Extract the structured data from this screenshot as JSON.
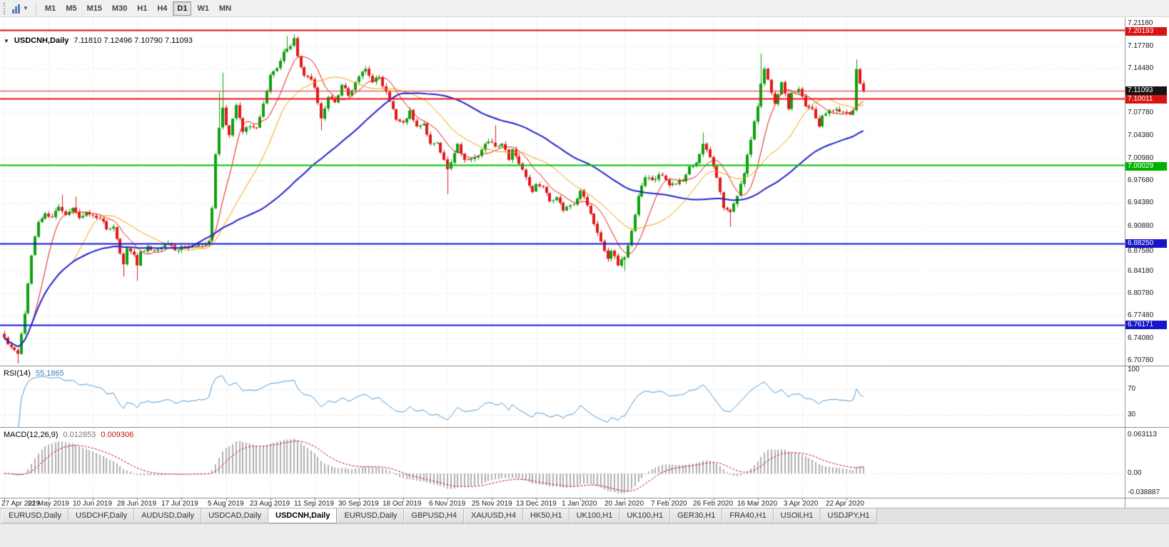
{
  "toolbar": {
    "timeframes": [
      {
        "label": "M1",
        "active": false
      },
      {
        "label": "M5",
        "active": false
      },
      {
        "label": "M15",
        "active": false
      },
      {
        "label": "M30",
        "active": false
      },
      {
        "label": "H1",
        "active": false
      },
      {
        "label": "H4",
        "active": false
      },
      {
        "label": "D1",
        "active": true
      },
      {
        "label": "W1",
        "active": false
      },
      {
        "label": "MN",
        "active": false
      }
    ]
  },
  "chart": {
    "collapse_marker": "▼",
    "title_symbol": "USDCNH,Daily",
    "ohlc": "7.11810 7.12496 7.10790 7.11093"
  },
  "price_axis": {
    "ticks": [
      {
        "text": "7.21180",
        "value": 7.2118
      },
      {
        "text": "7.17780",
        "value": 7.1778
      },
      {
        "text": "7.14480",
        "value": 7.1448
      },
      {
        "text": "",
        "value": 7.1108
      },
      {
        "text": "7.07780",
        "value": 7.0778
      },
      {
        "text": "7.04380",
        "value": 7.0438
      },
      {
        "text": "7.00980",
        "value": 7.0098
      },
      {
        "text": "6.97680",
        "value": 6.9768
      },
      {
        "text": "6.94380",
        "value": 6.9438
      },
      {
        "text": "6.90880",
        "value": 6.9088
      },
      {
        "text": "6.87580",
        "value": 6.8758
      },
      {
        "text": "6.84180",
        "value": 6.8418
      },
      {
        "text": "6.80780",
        "value": 6.8078
      },
      {
        "text": "6.77480",
        "value": 6.7748
      },
      {
        "text": "6.74080",
        "value": 6.7408
      },
      {
        "text": "6.70780",
        "value": 6.7078
      }
    ],
    "highlighted": [
      {
        "text": "7.20193",
        "value": 7.20193,
        "bg": "#d61414"
      },
      {
        "text": "7.11093",
        "value": 7.11093,
        "bg": "#141414"
      },
      {
        "text": "7.10011",
        "value": 7.10011,
        "bg": "#d61414"
      },
      {
        "text": "7.00029",
        "value": 7.00029,
        "bg": "#00b200"
      },
      {
        "text": "6.88250",
        "value": 6.8825,
        "bg": "#1616c8"
      },
      {
        "text": "6.76171",
        "value": 6.76171,
        "bg": "#1616c8"
      }
    ]
  },
  "hlines": [
    {
      "price": 7.20193,
      "color": "#d61414",
      "width": 2
    },
    {
      "price": 7.11093,
      "color": "#e83030",
      "width": 1
    },
    {
      "price": 7.10011,
      "color": "#e81414",
      "width": 2
    },
    {
      "price": 7.00029,
      "color": "#00c400",
      "width": 2
    },
    {
      "price": 6.8825,
      "color": "#1616d2",
      "width": 2
    },
    {
      "price": 6.76171,
      "color": "#1616d2",
      "width": 2
    }
  ],
  "date_axis": {
    "spacing_candles": 13,
    "labels": [
      "27 Apr 2019",
      "22 May 2019",
      "10 Jun 2019",
      "28 Jun 2019",
      "17 Jul 2019",
      "5 Aug 2019",
      "23 Aug 2019",
      "11 Sep 2019",
      "30 Sep 2019",
      "18 Oct 2019",
      "6 Nov 2019",
      "25 Nov 2019",
      "13 Dec 2019",
      "1 Jan 2020",
      "20 Jan 2020",
      "7 Feb 2020",
      "26 Feb 2020",
      "16 Mar 2020",
      "3 Apr 2020",
      "22 Apr 2020"
    ]
  },
  "rsi": {
    "label": "RSI(14)",
    "value": "55.1865",
    "color": "#4f9bd5",
    "levels": [
      70,
      30
    ],
    "axis": [
      {
        "text": "100",
        "value": 100
      },
      {
        "text": "70",
        "value": 70
      },
      {
        "text": "30",
        "value": 30
      }
    ]
  },
  "macd": {
    "label": "MACD(12,26,9)",
    "value_main": "0.012853",
    "value_signal": "0.009306",
    "hist_color": "#b0b0b0",
    "signal_color": "#d01010",
    "axis": [
      {
        "text": "0.063113",
        "value": 0.063113
      },
      {
        "text": "0.00",
        "value": 0
      },
      {
        "text": "-0.038887",
        "value": -0.038887
      }
    ]
  },
  "tabs": {
    "items": [
      {
        "label": "EURUSD,Daily",
        "active": false
      },
      {
        "label": "USDCHF,Daily",
        "active": false
      },
      {
        "label": "AUDUSD,Daily",
        "active": false
      },
      {
        "label": "USDCAD,Daily",
        "active": false
      },
      {
        "label": "USDCNH,Daily",
        "active": true
      },
      {
        "label": "EURUSD,Daily",
        "active": false
      },
      {
        "label": "GBPUSD,H4",
        "active": false
      },
      {
        "label": "XAUUSD,H4",
        "active": false
      },
      {
        "label": "HK50,H1",
        "active": false
      },
      {
        "label": "UK100,H1",
        "active": false
      },
      {
        "label": "UK100,H1",
        "active": false
      },
      {
        "label": "GER30,H1",
        "active": false
      },
      {
        "label": "FRA40,H1",
        "active": false
      },
      {
        "label": "USOil,H1",
        "active": false
      },
      {
        "label": "USDJPY,H1",
        "active": false
      }
    ]
  },
  "colors": {
    "up": "#0fa00f",
    "down": "#e11919",
    "grid": "#d9d9d9",
    "level": "#c8c8c8",
    "axis_text": "#1a1a1a"
  },
  "chart_data": {
    "type": "candlestick",
    "symbol": "USDCNH",
    "period": "Daily",
    "open": 7.1181,
    "high": 7.12496,
    "low": 7.1079,
    "close": 7.11093,
    "visible_range": {
      "start": "27 Apr 2019",
      "end": "22 Apr 2020"
    },
    "price_range": {
      "max": 7.2118,
      "min": 6.7078
    },
    "candles_total": 253,
    "price_anchors": [
      [
        0,
        6.742
      ],
      [
        2,
        6.728
      ],
      [
        4,
        6.718
      ],
      [
        5,
        6.748
      ],
      [
        6,
        6.778
      ],
      [
        8,
        6.865
      ],
      [
        10,
        6.915
      ],
      [
        12,
        6.928
      ],
      [
        14,
        6.922
      ],
      [
        16,
        6.938
      ],
      [
        18,
        6.926
      ],
      [
        20,
        6.936
      ],
      [
        22,
        6.921
      ],
      [
        24,
        6.93
      ],
      [
        26,
        6.925
      ],
      [
        28,
        6.921
      ],
      [
        30,
        6.904
      ],
      [
        32,
        6.908
      ],
      [
        34,
        6.868
      ],
      [
        35,
        6.852
      ],
      [
        36,
        6.876
      ],
      [
        38,
        6.866
      ],
      [
        39,
        6.85
      ],
      [
        40,
        6.871
      ],
      [
        42,
        6.879
      ],
      [
        44,
        6.873
      ],
      [
        46,
        6.877
      ],
      [
        48,
        6.883
      ],
      [
        50,
        6.873
      ],
      [
        52,
        6.879
      ],
      [
        54,
        6.877
      ],
      [
        56,
        6.879
      ],
      [
        58,
        6.881
      ],
      [
        60,
        6.887
      ],
      [
        61,
        6.936
      ],
      [
        62,
        7.016
      ],
      [
        63,
        7.056
      ],
      [
        64,
        7.086
      ],
      [
        65,
        7.06
      ],
      [
        66,
        7.045
      ],
      [
        68,
        7.09
      ],
      [
        70,
        7.05
      ],
      [
        72,
        7.058
      ],
      [
        74,
        7.056
      ],
      [
        76,
        7.092
      ],
      [
        78,
        7.135
      ],
      [
        80,
        7.145
      ],
      [
        82,
        7.17
      ],
      [
        84,
        7.178
      ],
      [
        85,
        7.19
      ],
      [
        86,
        7.163
      ],
      [
        88,
        7.134
      ],
      [
        90,
        7.128
      ],
      [
        91,
        7.116
      ],
      [
        92,
        7.093
      ],
      [
        93,
        7.07
      ],
      [
        95,
        7.102
      ],
      [
        97,
        7.094
      ],
      [
        99,
        7.12
      ],
      [
        101,
        7.104
      ],
      [
        103,
        7.124
      ],
      [
        105,
        7.14
      ],
      [
        106,
        7.144
      ],
      [
        108,
        7.124
      ],
      [
        110,
        7.132
      ],
      [
        112,
        7.11
      ],
      [
        114,
        7.084
      ],
      [
        115,
        7.068
      ],
      [
        117,
        7.064
      ],
      [
        119,
        7.082
      ],
      [
        121,
        7.058
      ],
      [
        123,
        7.062
      ],
      [
        125,
        7.032
      ],
      [
        127,
        7.034
      ],
      [
        129,
        7.008
      ],
      [
        130,
        6.994
      ],
      [
        132,
        7.018
      ],
      [
        133,
        7.032
      ],
      [
        135,
        7.008
      ],
      [
        137,
        7.01
      ],
      [
        139,
        7.014
      ],
      [
        141,
        7.032
      ],
      [
        143,
        7.034
      ],
      [
        144,
        7.028
      ],
      [
        146,
        7.032
      ],
      [
        148,
        7.008
      ],
      [
        149,
        7.024
      ],
      [
        151,
        7.002
      ],
      [
        153,
        6.982
      ],
      [
        155,
        6.96
      ],
      [
        156,
        6.972
      ],
      [
        158,
        6.968
      ],
      [
        160,
        6.946
      ],
      [
        162,
        6.952
      ],
      [
        164,
        6.932
      ],
      [
        166,
        6.94
      ],
      [
        168,
        6.95
      ],
      [
        169,
        6.962
      ],
      [
        171,
        6.94
      ],
      [
        173,
        6.912
      ],
      [
        175,
        6.886
      ],
      [
        177,
        6.86
      ],
      [
        178,
        6.872
      ],
      [
        180,
        6.85
      ],
      [
        182,
        6.862
      ],
      [
        184,
        6.902
      ],
      [
        186,
        6.954
      ],
      [
        188,
        6.982
      ],
      [
        190,
        6.978
      ],
      [
        192,
        6.986
      ],
      [
        194,
        6.978
      ],
      [
        195,
        6.97
      ],
      [
        197,
        6.972
      ],
      [
        199,
        6.976
      ],
      [
        201,
        6.998
      ],
      [
        203,
        7.004
      ],
      [
        205,
        7.032
      ],
      [
        207,
        7.012
      ],
      [
        208,
        6.998
      ],
      [
        210,
        6.96
      ],
      [
        211,
        6.936
      ],
      [
        213,
        6.93
      ],
      [
        215,
        6.954
      ],
      [
        217,
        6.988
      ],
      [
        219,
        7.038
      ],
      [
        221,
        7.088
      ],
      [
        222,
        7.122
      ],
      [
        223,
        7.144
      ],
      [
        224,
        7.128
      ],
      [
        226,
        7.092
      ],
      [
        228,
        7.124
      ],
      [
        230,
        7.084
      ],
      [
        231,
        7.108
      ],
      [
        233,
        7.114
      ],
      [
        235,
        7.088
      ],
      [
        237,
        7.084
      ],
      [
        239,
        7.058
      ],
      [
        240,
        7.074
      ],
      [
        242,
        7.082
      ],
      [
        244,
        7.084
      ],
      [
        246,
        7.08
      ],
      [
        248,
        7.076
      ],
      [
        249,
        7.082
      ],
      [
        250,
        7.144
      ],
      [
        251,
        7.122
      ],
      [
        252,
        7.11093
      ]
    ],
    "wick_events": [
      {
        "i": 4,
        "low": 6.7035
      },
      {
        "i": 17,
        "high": 6.956
      },
      {
        "i": 21,
        "high": 6.953
      },
      {
        "i": 35,
        "low": 6.8335
      },
      {
        "i": 39,
        "low": 6.827
      },
      {
        "i": 63,
        "high": 7.109
      },
      {
        "i": 64,
        "high": 7.1385
      },
      {
        "i": 83,
        "high": 7.193
      },
      {
        "i": 85,
        "high": 7.196
      },
      {
        "i": 93,
        "low": 7.052
      },
      {
        "i": 130,
        "low": 6.957
      },
      {
        "i": 144,
        "high": 7.06
      },
      {
        "i": 182,
        "low": 6.842
      },
      {
        "i": 205,
        "high": 7.049
      },
      {
        "i": 213,
        "low": 6.908
      },
      {
        "i": 222,
        "high": 7.167
      },
      {
        "i": 250,
        "high": 7.158
      }
    ],
    "moving_averages": [
      {
        "period": 9,
        "color": "#e81414",
        "width": 1
      },
      {
        "period": 21,
        "color": "#f2a200",
        "width": 1
      },
      {
        "period": 55,
        "color": "#2424cc",
        "width": 2
      }
    ],
    "indicators": [
      {
        "name": "RSI",
        "params": [
          14
        ],
        "last_value": 55.1865
      },
      {
        "name": "MACD",
        "params": [
          12,
          26,
          9
        ],
        "last_values": [
          0.012853,
          0.009306
        ]
      }
    ]
  }
}
